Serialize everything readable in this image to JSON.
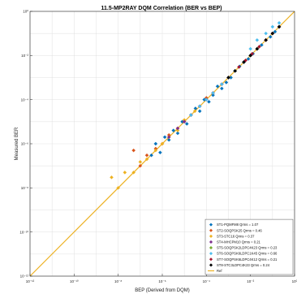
{
  "chart_data": {
    "type": "scatter",
    "title": "11.5-MP2RAY DQM Correlation (BER vs BEP)",
    "xlabel": "BEP (Derived from DQM)",
    "ylabel": "Measured BER",
    "xscale": "log",
    "yscale": "log",
    "xlim": [
      1e-12,
      1
    ],
    "ylim": [
      1e-12,
      1
    ],
    "x_ticks": [
      {
        "value": -12,
        "label": "10⁻¹²"
      },
      {
        "value": -10,
        "label": "10⁻¹⁰"
      },
      {
        "value": -8,
        "label": "10⁻⁸"
      },
      {
        "value": -6,
        "label": "10⁻⁶"
      },
      {
        "value": -4,
        "label": "10⁻⁴"
      },
      {
        "value": -2,
        "label": "10⁻²"
      },
      {
        "value": 0,
        "label": "10⁰"
      }
    ],
    "y_ticks": [
      {
        "value": 0,
        "label": "10⁰"
      },
      {
        "value": -2,
        "label": "10⁻²"
      },
      {
        "value": -4,
        "label": "10⁻⁴"
      },
      {
        "value": -6,
        "label": "10⁻⁶"
      },
      {
        "value": -8,
        "label": "10⁻⁸"
      },
      {
        "value": -10,
        "label": "10⁻¹⁰"
      },
      {
        "value": -12,
        "label": "10⁻¹²"
      }
    ],
    "grid": true,
    "legend_position": "bottom-right",
    "reference_line": {
      "name": "Ref",
      "color": "#EDB120",
      "x": [
        1e-12,
        1
      ],
      "y": [
        1e-12,
        1
      ]
    },
    "series": [
      {
        "name": "ST1-PQMFM8  Qrms = 1.07",
        "color": "#0072BD",
        "marker": "diamond",
        "points": [
          [
            3.2e-07,
            3e-07
          ],
          [
            5e-07,
            1e-06
          ],
          [
            8e-07,
            4e-07
          ],
          [
            1.3e-06,
            2e-06
          ],
          [
            2e-06,
            1.5e-06
          ],
          [
            3.2e-06,
            4e-06
          ],
          [
            5e-06,
            3e-06
          ],
          [
            8e-06,
            1e-05
          ],
          [
            1.3e-05,
            8e-06
          ],
          [
            2e-05,
            2e-05
          ],
          [
            3.2e-05,
            4e-05
          ],
          [
            5e-05,
            3e-05
          ],
          [
            8e-05,
            0.0001
          ],
          [
            0.00013,
            8e-05
          ],
          [
            0.0002,
            0.00016
          ],
          [
            0.00032,
            0.0004
          ],
          [
            0.0005,
            0.00032
          ],
          [
            0.0008,
            0.0006
          ],
          [
            0.0013,
            0.001
          ],
          [
            0.002,
            0.002
          ],
          [
            0.0032,
            0.0032
          ],
          [
            0.005,
            0.005
          ],
          [
            0.008,
            0.007
          ],
          [
            0.013,
            0.012
          ],
          [
            0.02,
            0.02
          ],
          [
            0.032,
            0.03
          ],
          [
            0.05,
            0.05
          ],
          [
            0.08,
            0.07
          ],
          [
            0.13,
            0.12
          ],
          [
            0.2,
            0.2
          ]
        ]
      },
      {
        "name": "ST2-SOQPSK25  Qrms = 0.46",
        "color": "#D95319",
        "marker": "diamond",
        "points": [
          [
            5e-08,
            5e-07
          ],
          [
            1e-07,
            1e-07
          ],
          [
            2e-07,
            3e-07
          ],
          [
            5e-07,
            6e-07
          ],
          [
            1e-06,
            1e-06
          ],
          [
            2e-06,
            2.5e-06
          ],
          [
            5e-06,
            5e-06
          ],
          [
            1e-05,
            1e-05
          ],
          [
            2e-05,
            2e-05
          ],
          [
            5e-05,
            5e-05
          ],
          [
            0.0001,
            0.00012
          ],
          [
            0.0002,
            0.0002
          ],
          [
            0.0005,
            0.0005
          ],
          [
            0.001,
            0.001
          ],
          [
            0.002,
            0.002
          ]
        ]
      },
      {
        "name": "ST3-STC16  Qrms = 0.37",
        "color": "#EDB120",
        "marker": "diamond",
        "points": [
          [
            5e-09,
            3e-08
          ],
          [
            1e-08,
            1e-08
          ],
          [
            2e-08,
            5e-08
          ],
          [
            5e-08,
            5e-08
          ],
          [
            1e-07,
            1.5e-07
          ],
          [
            2e-07,
            2e-07
          ],
          [
            5e-07,
            5e-07
          ],
          [
            1e-06,
            1e-06
          ],
          [
            2e-06,
            2e-06
          ],
          [
            5e-06,
            4e-06
          ],
          [
            1e-05,
            1.2e-05
          ],
          [
            3e-05,
            3e-05
          ]
        ]
      },
      {
        "name": "ST4-MHCPM10  Qrms = 0.21",
        "color": "#7E2F8E",
        "marker": "diamond",
        "points": [
          [
            2e-06,
            2e-06
          ],
          [
            5e-06,
            5e-06
          ],
          [
            1e-05,
            1e-05
          ],
          [
            2e-05,
            2e-05
          ],
          [
            5e-05,
            5e-05
          ],
          [
            0.0001,
            0.0001
          ],
          [
            0.0002,
            0.0002
          ],
          [
            0.0005,
            0.0005
          ],
          [
            0.001,
            0.001
          ],
          [
            0.002,
            0.002
          ],
          [
            0.005,
            0.005
          ],
          [
            0.01,
            0.01
          ],
          [
            0.02,
            0.02
          ],
          [
            0.05,
            0.05
          ],
          [
            0.1,
            0.1
          ]
        ]
      },
      {
        "name": "ST5-SOQPSK2LDPC4K23  Qrms = 0.23",
        "color": "#77AC30",
        "marker": "diamond",
        "points": [
          [
            0.002,
            0.002
          ],
          [
            0.005,
            0.005
          ],
          [
            0.01,
            0.01
          ],
          [
            0.02,
            0.02
          ],
          [
            0.05,
            0.05
          ],
          [
            0.1,
            0.1
          ],
          [
            0.2,
            0.2
          ]
        ]
      },
      {
        "name": "ST6-SOQPSK6LDPC1K45  Qrms = 0.66",
        "color": "#4DBEEE",
        "marker": "diamond",
        "points": [
          [
            2e-05,
            2e-05
          ],
          [
            5e-05,
            5e-05
          ],
          [
            0.0001,
            0.0001
          ],
          [
            0.0002,
            0.0002
          ],
          [
            0.0005,
            0.0005
          ],
          [
            0.001,
            0.001
          ],
          [
            0.002,
            0.002
          ],
          [
            0.005,
            0.005
          ],
          [
            0.01,
            0.02
          ],
          [
            0.02,
            0.05
          ],
          [
            0.05,
            0.1
          ],
          [
            0.1,
            0.2
          ],
          [
            0.2,
            0.3
          ]
        ]
      },
      {
        "name": "ST7-SOQPSK6LDPC4K12  Qrms = 0.21",
        "color": "#A2142F",
        "marker": "diamond",
        "points": [
          [
            0.003,
            0.003
          ],
          [
            0.006,
            0.006
          ],
          [
            0.012,
            0.012
          ],
          [
            0.025,
            0.025
          ],
          [
            0.05,
            0.05
          ],
          [
            0.1,
            0.1
          ],
          [
            0.2,
            0.2
          ]
        ]
      },
      {
        "name": "ST8-STC3LDPC4K23  Qrms = 0.24",
        "color": "#000000",
        "marker": "diamond",
        "points": [
          [
            0.001,
            0.001
          ],
          [
            0.002,
            0.002
          ],
          [
            0.005,
            0.005
          ],
          [
            0.01,
            0.01
          ],
          [
            0.02,
            0.02
          ],
          [
            0.05,
            0.05
          ],
          [
            0.1,
            0.1
          ],
          [
            0.2,
            0.2
          ]
        ]
      }
    ]
  }
}
